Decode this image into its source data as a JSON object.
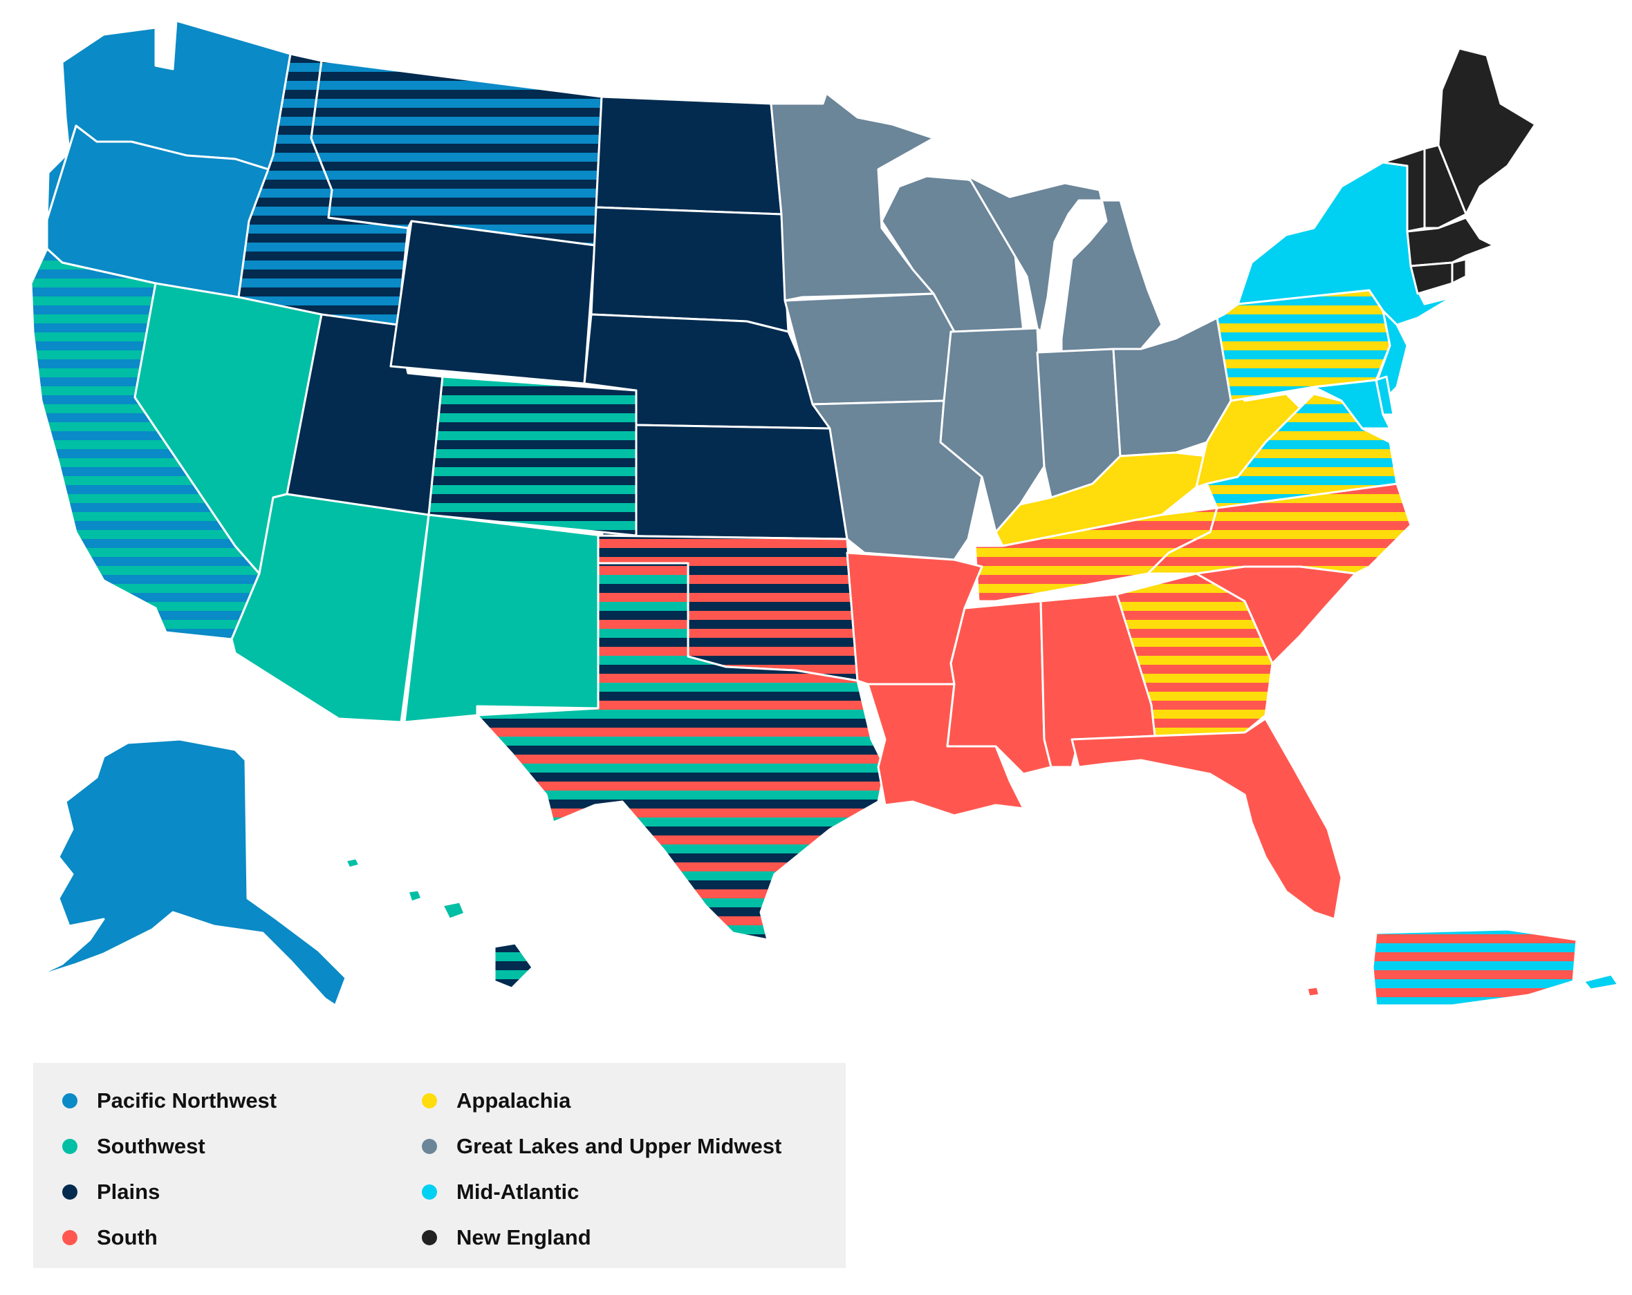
{
  "legend": {
    "items": [
      {
        "label": "Pacific Northwest",
        "color": "#0a8ac6",
        "key": "pnw"
      },
      {
        "label": "Southwest",
        "color": "#00bfa5",
        "key": "sw"
      },
      {
        "label": "Plains",
        "color": "#022b4f",
        "key": "plains"
      },
      {
        "label": "South",
        "color": "#ff574f",
        "key": "south"
      },
      {
        "label": "Appalachia",
        "color": "#ffdc0b",
        "key": "app"
      },
      {
        "label": "Great Lakes and Upper Midwest",
        "color": "#6b8599",
        "key": "gl"
      },
      {
        "label": "Mid-Atlantic",
        "color": "#00d0f2",
        "key": "ma"
      },
      {
        "label": "New England",
        "color": "#222222",
        "key": "ne"
      }
    ]
  },
  "regions": {
    "pnw": [
      "WA",
      "OR",
      "AK"
    ],
    "pnw+plains": [
      "ID",
      "MT"
    ],
    "pnw+sw": [
      "CA"
    ],
    "sw": [
      "NV",
      "AZ",
      "NM"
    ],
    "sw+plains": [
      "CO",
      "HI"
    ],
    "plains": [
      "UT",
      "WY",
      "ND",
      "SD",
      "NE",
      "KS"
    ],
    "south+plains": [
      "OK"
    ],
    "south+sw+plains": [
      "TX"
    ],
    "gl": [
      "MN",
      "IA",
      "MO",
      "WI",
      "IL",
      "MI",
      "IN",
      "OH"
    ],
    "south": [
      "AR",
      "LA",
      "MS",
      "AL",
      "FL",
      "SC"
    ],
    "app": [
      "KY",
      "WV"
    ],
    "south+app": [
      "TN",
      "NC",
      "GA"
    ],
    "app+ma": [
      "PA",
      "VA"
    ],
    "ma": [
      "NY",
      "NJ",
      "MD",
      "DE"
    ],
    "ne": [
      "ME",
      "NH",
      "VT",
      "MA",
      "CT",
      "RI"
    ],
    "south+ma": [
      "PR"
    ]
  }
}
